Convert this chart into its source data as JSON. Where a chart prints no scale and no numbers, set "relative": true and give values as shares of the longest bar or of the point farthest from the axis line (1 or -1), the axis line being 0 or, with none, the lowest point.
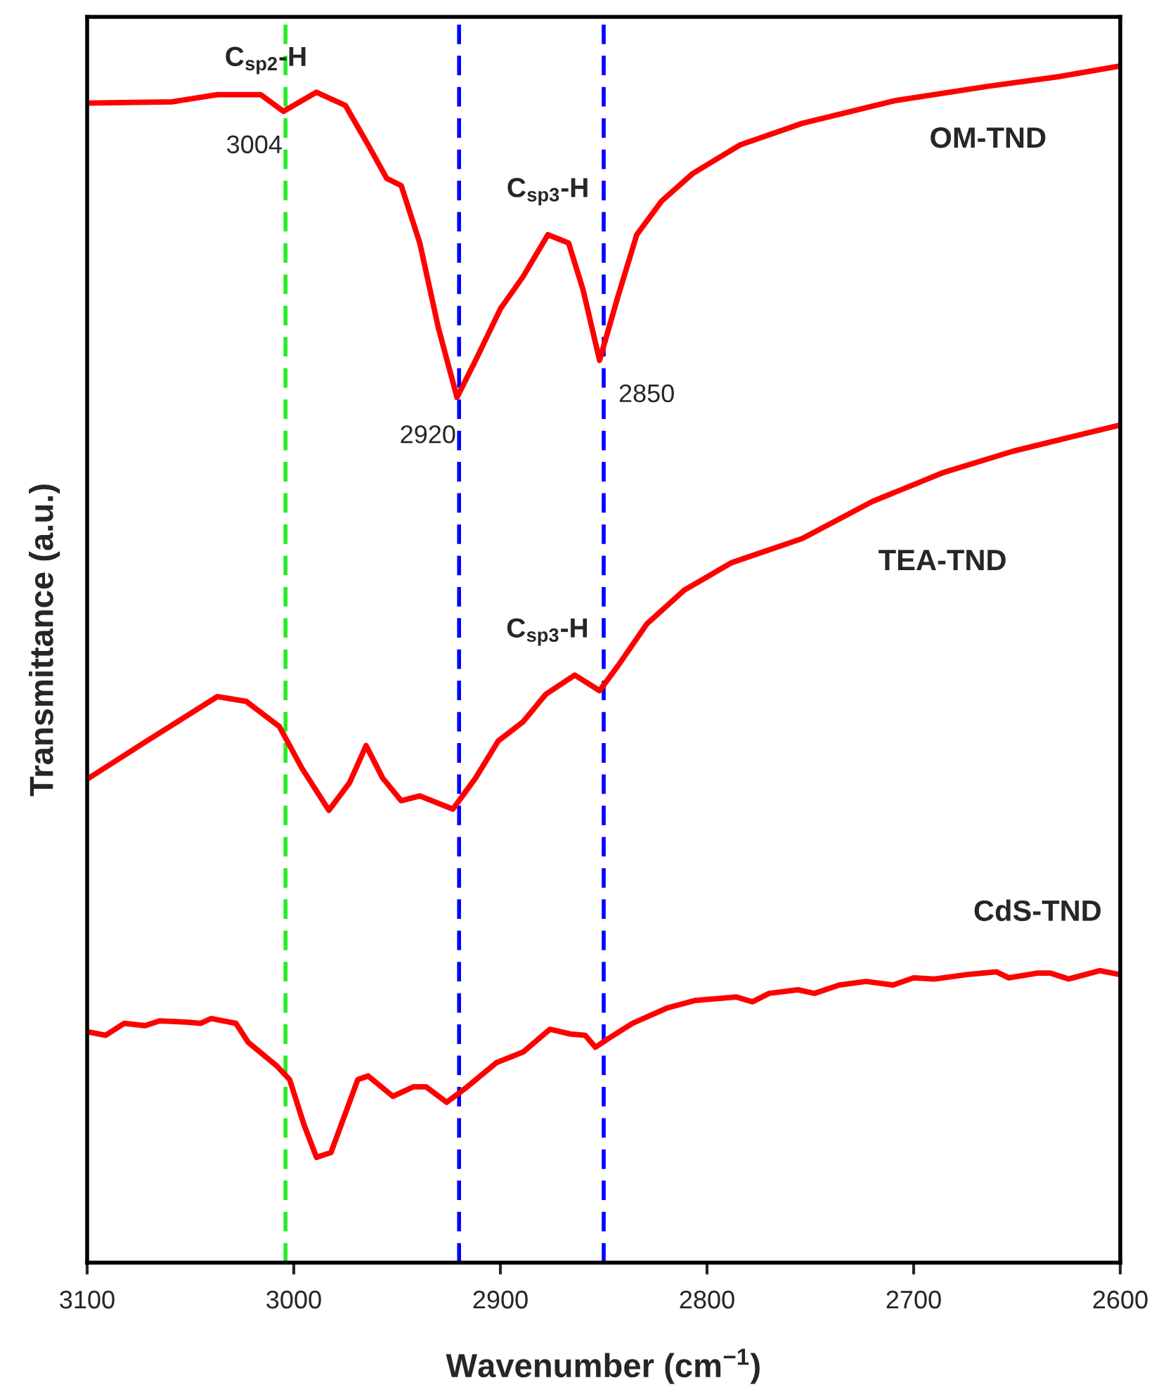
{
  "chart_data": {
    "type": "line",
    "relative": true,
    "xlabel": "Wavenumber (cm$^{−1}$)",
    "ylabel": "Transmittance (a.u.)",
    "xlim": [
      3100,
      2600
    ],
    "xticks": [
      3100,
      3000,
      2900,
      2800,
      2700,
      2600
    ],
    "grid": false,
    "marker": "none",
    "line_style": "solid",
    "series": [
      {
        "name": "OM-TND",
        "color": "#ff0000",
        "x": [
          3100,
          3059,
          3037,
          3016,
          3005,
          2989,
          2975,
          2964,
          2955,
          2948,
          2939,
          2930,
          2921,
          2912,
          2900,
          2889,
          2877,
          2867,
          2860,
          2852,
          2843,
          2834,
          2822,
          2807,
          2784,
          2754,
          2709,
          2664,
          2630,
          2600
        ],
        "values": [
          0.969,
          0.97,
          0.976,
          0.976,
          0.962,
          0.978,
          0.967,
          0.934,
          0.906,
          0.9,
          0.852,
          0.781,
          0.723,
          0.754,
          0.797,
          0.824,
          0.859,
          0.852,
          0.813,
          0.754,
          0.808,
          0.859,
          0.887,
          0.91,
          0.934,
          0.952,
          0.971,
          0.983,
          0.991,
          1.0
        ]
      },
      {
        "name": "TEA-TND",
        "color": "#ff0000",
        "x": [
          3100,
          3071,
          3037,
          3023,
          3007,
          2996,
          2983,
          2973,
          2965,
          2957,
          2948,
          2939,
          2923,
          2912,
          2901,
          2889,
          2878,
          2864,
          2852,
          2843,
          2829,
          2811,
          2788,
          2754,
          2720,
          2686,
          2652,
          2600
        ],
        "values": [
          0.404,
          0.436,
          0.473,
          0.469,
          0.448,
          0.413,
          0.378,
          0.401,
          0.432,
          0.405,
          0.386,
          0.39,
          0.379,
          0.405,
          0.436,
          0.452,
          0.475,
          0.491,
          0.478,
          0.499,
          0.534,
          0.562,
          0.585,
          0.605,
          0.636,
          0.66,
          0.678,
          0.7
        ]
      },
      {
        "name": "CdS-TND",
        "color": "#ff0000",
        "x": [
          3100,
          3091,
          3082,
          3072,
          3065,
          3052,
          3045,
          3040,
          3028,
          3022,
          3008,
          3002,
          2995,
          2989,
          2982,
          2969,
          2964,
          2952,
          2942,
          2936,
          2926,
          2916,
          2902,
          2889,
          2876,
          2866,
          2859,
          2854,
          2848,
          2836,
          2819,
          2806,
          2786,
          2778,
          2770,
          2756,
          2748,
          2736,
          2723,
          2710,
          2700,
          2690,
          2673,
          2660,
          2654,
          2640,
          2634,
          2625,
          2610,
          2601
        ],
        "values": [
          0.193,
          0.19,
          0.2,
          0.198,
          0.202,
          0.201,
          0.2,
          0.204,
          0.2,
          0.184,
          0.164,
          0.153,
          0.115,
          0.088,
          0.092,
          0.153,
          0.156,
          0.139,
          0.147,
          0.147,
          0.134,
          0.147,
          0.167,
          0.176,
          0.195,
          0.191,
          0.19,
          0.18,
          0.187,
          0.2,
          0.213,
          0.219,
          0.222,
          0.218,
          0.225,
          0.228,
          0.225,
          0.232,
          0.235,
          0.232,
          0.238,
          0.237,
          0.241,
          0.243,
          0.238,
          0.242,
          0.242,
          0.237,
          0.244,
          0.241
        ]
      }
    ],
    "ref_lines": [
      {
        "axis": "x",
        "value": 3004,
        "color": "#22ee22",
        "line_style": "dashed"
      },
      {
        "axis": "x",
        "value": 2920,
        "color": "#0000ff",
        "line_style": "dashed"
      },
      {
        "axis": "x",
        "value": 2850,
        "color": "#0000ff",
        "line_style": "dashed"
      }
    ],
    "annotations": [
      {
        "text": "C$_{sp2}$-H",
        "x": 3004,
        "y": 0.962
      },
      {
        "text": "3004",
        "x": 3004,
        "y": 0.962
      },
      {
        "text": "2920",
        "x": 2920,
        "y": 0.723
      },
      {
        "text": "2850",
        "x": 2850,
        "y": 0.754
      },
      {
        "text": "C$_{sp3}$-H",
        "x": 2877,
        "y": 0.859
      },
      {
        "text": "C$_{sp3}$-H",
        "x": 2864,
        "y": 0.491
      }
    ]
  }
}
